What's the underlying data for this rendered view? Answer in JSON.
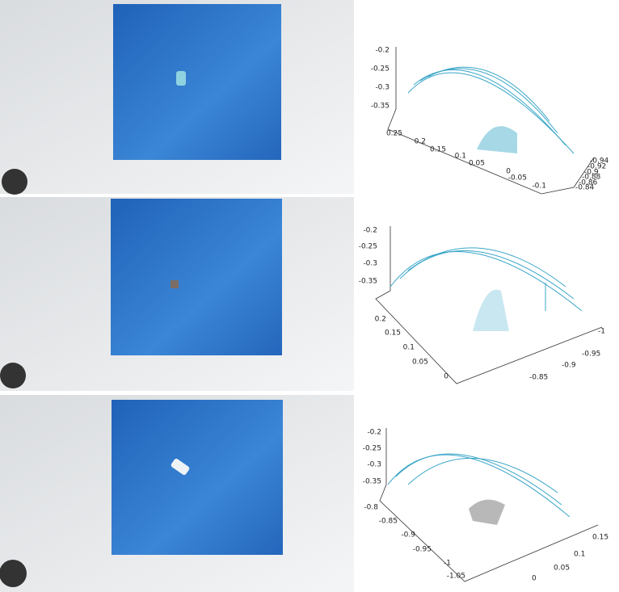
{
  "panels": [
    {
      "z_ticks": [
        "-0.2",
        "-0.25",
        "-0.3",
        "-0.35"
      ],
      "left_ticks": [
        "0.25",
        "0.2",
        "0.15",
        "0.1",
        "0.05",
        "0",
        "-0.05",
        "-0.1"
      ],
      "right_ticks": [
        "-0.94",
        "-0.92",
        "-0.9",
        "-0.88",
        "-0.86",
        "-0.84"
      ]
    },
    {
      "z_ticks": [
        "-0.2",
        "-0.25",
        "-0.3",
        "-0.35"
      ],
      "left_ticks": [
        "0.2",
        "0.15",
        "0.1",
        "0.05",
        "0"
      ],
      "right_ticks": [
        "-1",
        "-0.95",
        "-0.9",
        "-0.85"
      ]
    },
    {
      "z_ticks": [
        "-0.2",
        "-0.25",
        "-0.3",
        "-0.35"
      ],
      "left_ticks": [
        "-0.8",
        "-0.85",
        "-0.9",
        "-0.95",
        "-1",
        "-1.05"
      ],
      "right_ticks": [
        "0.15",
        "0.1",
        "0.05",
        "0"
      ]
    }
  ]
}
